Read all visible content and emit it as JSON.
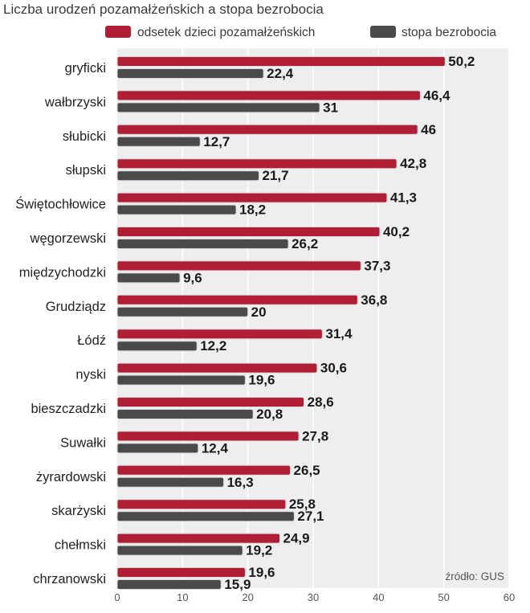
{
  "chart_data": {
    "type": "bar",
    "orientation": "horizontal",
    "title": "Liczba urodzeń pozamałżeńskich a stopa bezrobocia",
    "categories": [
      "gryficki",
      "wałbrzyski",
      "słubicki",
      "słupski",
      "Świętochłowice",
      "węgorzewski",
      "międzychodzki",
      "Grudziądz",
      "Łódź",
      "nyski",
      "bieszczadzki",
      "Suwałki",
      "żyrardowski",
      "skarżyski",
      "chełmski",
      "chrzanowski"
    ],
    "series": [
      {
        "name": "odsetek dzieci pozamałżeńskich",
        "color": "#b01e35",
        "values": [
          50.2,
          46.4,
          46,
          42.8,
          41.3,
          40.2,
          37.3,
          36.8,
          31.4,
          30.6,
          28.6,
          27.8,
          26.5,
          25.8,
          24.9,
          19.6
        ],
        "labels": [
          "50,2",
          "46,4",
          "46",
          "42,8",
          "41,3",
          "40,2",
          "37,3",
          "36,8",
          "31,4",
          "30,6",
          "28,6",
          "27,8",
          "26,5",
          "25,8",
          "24,9",
          "19,6"
        ]
      },
      {
        "name": "stopa bezrobocia",
        "color": "#4a4a4a",
        "values": [
          22.4,
          31,
          12.7,
          21.7,
          18.2,
          26.2,
          9.6,
          20,
          12.2,
          19.6,
          20.8,
          12.4,
          16.3,
          27.1,
          19.2,
          15.9
        ],
        "labels": [
          "22,4",
          "31",
          "12,7",
          "21,7",
          "18,2",
          "26,2",
          "9,6",
          "20",
          "12,2",
          "19,6",
          "20,8",
          "12,4",
          "16,3",
          "27,1",
          "19,2",
          "15,9"
        ]
      }
    ],
    "xlim": [
      0,
      60
    ],
    "xticks": [
      "0",
      "10",
      "20",
      "30",
      "40",
      "50",
      "60"
    ],
    "xtick_values": [
      0,
      10,
      20,
      30,
      40,
      50,
      60
    ],
    "grid": "vertical",
    "legend_position": "top-right",
    "background_color": "#eeeeee",
    "source": "źródło: GUS"
  }
}
